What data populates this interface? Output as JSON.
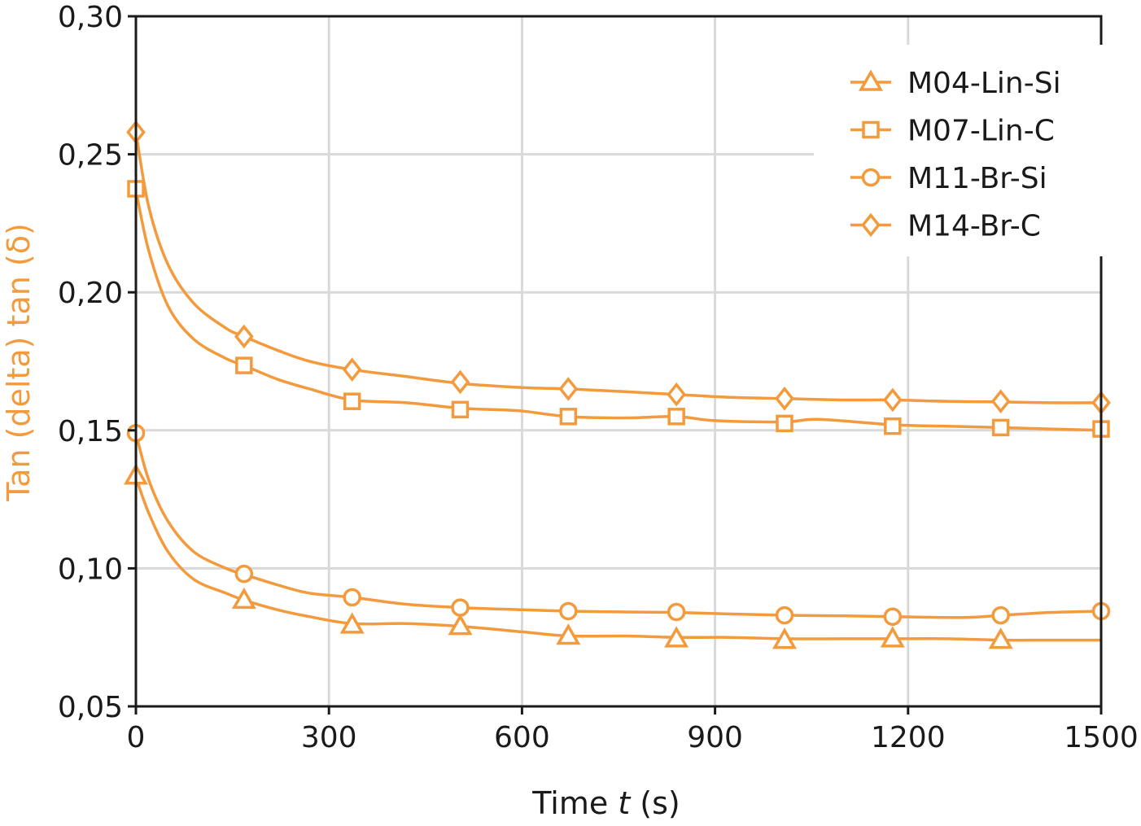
{
  "chart_data": {
    "type": "line",
    "title": "",
    "xlabel_prefix": "Time ",
    "xlabel_var": "t",
    "xlabel_suffix": " (s)",
    "ylabel": "Tan (delta) tan (δ)",
    "xlim": [
      0,
      1500
    ],
    "ylim": [
      0.05,
      0.3
    ],
    "x_ticks": [
      0,
      300,
      600,
      900,
      1200,
      1500
    ],
    "x_tick_labels": [
      "0",
      "300",
      "600",
      "900",
      "1200",
      "1500"
    ],
    "y_ticks": [
      0.05,
      0.1,
      0.15,
      0.2,
      0.25,
      0.3
    ],
    "y_tick_labels": [
      "0,05",
      "0,10",
      "0,15",
      "0,20",
      "0,25",
      "0,30"
    ],
    "grid": true,
    "legend_position": "top-right",
    "color": "#f29a3c",
    "ylabel_color": "#f29a3c",
    "series": [
      {
        "name": "M04-Lin-Si",
        "marker": "triangle",
        "x": [
          0,
          20,
          50,
          90,
          140,
          168,
          220,
          270,
          336,
          420,
          504,
          600,
          672,
          760,
          840,
          920,
          1008,
          1100,
          1176,
          1260,
          1344,
          1420,
          1500
        ],
        "y": [
          0.133,
          0.12,
          0.106,
          0.096,
          0.091,
          0.0885,
          0.085,
          0.0825,
          0.08,
          0.08,
          0.079,
          0.077,
          0.0755,
          0.0755,
          0.075,
          0.075,
          0.0745,
          0.0745,
          0.0745,
          0.0745,
          0.074,
          0.074,
          0.074
        ],
        "marker_x": [
          0,
          168,
          336,
          504,
          672,
          840,
          1008,
          1176,
          1344
        ],
        "marker_y": [
          0.1335,
          0.0885,
          0.0795,
          0.079,
          0.0755,
          0.0745,
          0.074,
          0.0745,
          0.074
        ]
      },
      {
        "name": "M07-Lin-C",
        "marker": "square",
        "x": [
          0,
          20,
          50,
          90,
          140,
          168,
          220,
          270,
          336,
          420,
          504,
          560,
          600,
          672,
          760,
          840,
          900,
          1008,
          1060,
          1176,
          1260,
          1344,
          1420,
          1500
        ],
        "y": [
          0.237,
          0.215,
          0.195,
          0.183,
          0.176,
          0.1735,
          0.1685,
          0.165,
          0.161,
          0.16,
          0.158,
          0.1575,
          0.157,
          0.155,
          0.1545,
          0.155,
          0.1535,
          0.153,
          0.154,
          0.152,
          0.1515,
          0.151,
          0.1505,
          0.15
        ],
        "marker_x": [
          0,
          168,
          336,
          504,
          672,
          840,
          1008,
          1176,
          1344,
          1500
        ],
        "marker_y": [
          0.2375,
          0.1735,
          0.1605,
          0.1575,
          0.155,
          0.155,
          0.1525,
          0.1515,
          0.151,
          0.1505
        ]
      },
      {
        "name": "M11-Br-Si",
        "marker": "circle",
        "x": [
          0,
          20,
          50,
          90,
          140,
          168,
          220,
          270,
          336,
          420,
          504,
          600,
          672,
          760,
          840,
          920,
          1008,
          1100,
          1176,
          1290,
          1344,
          1420,
          1500
        ],
        "y": [
          0.149,
          0.132,
          0.117,
          0.106,
          0.1,
          0.0978,
          0.094,
          0.091,
          0.0895,
          0.087,
          0.0858,
          0.085,
          0.0845,
          0.0842,
          0.084,
          0.0835,
          0.083,
          0.0828,
          0.0825,
          0.0822,
          0.083,
          0.084,
          0.0845
        ],
        "marker_x": [
          0,
          168,
          336,
          504,
          672,
          840,
          1008,
          1176,
          1344,
          1500
        ],
        "marker_y": [
          0.149,
          0.098,
          0.0895,
          0.0858,
          0.0845,
          0.0842,
          0.083,
          0.0825,
          0.083,
          0.0845
        ]
      },
      {
        "name": "M14-Br-C",
        "marker": "diamond",
        "x": [
          0,
          20,
          50,
          90,
          140,
          168,
          220,
          270,
          336,
          420,
          504,
          600,
          672,
          760,
          840,
          920,
          1008,
          1100,
          1176,
          1260,
          1344,
          1420,
          1500
        ],
        "y": [
          0.258,
          0.231,
          0.21,
          0.196,
          0.187,
          0.184,
          0.179,
          0.175,
          0.172,
          0.1695,
          0.167,
          0.1655,
          0.165,
          0.164,
          0.163,
          0.162,
          0.1615,
          0.161,
          0.161,
          0.1605,
          0.1603,
          0.16,
          0.16
        ],
        "marker_x": [
          0,
          168,
          336,
          504,
          672,
          840,
          1008,
          1176,
          1344,
          1500
        ],
        "marker_y": [
          0.258,
          0.184,
          0.172,
          0.1675,
          0.165,
          0.163,
          0.1615,
          0.161,
          0.1605,
          0.16
        ]
      }
    ]
  }
}
